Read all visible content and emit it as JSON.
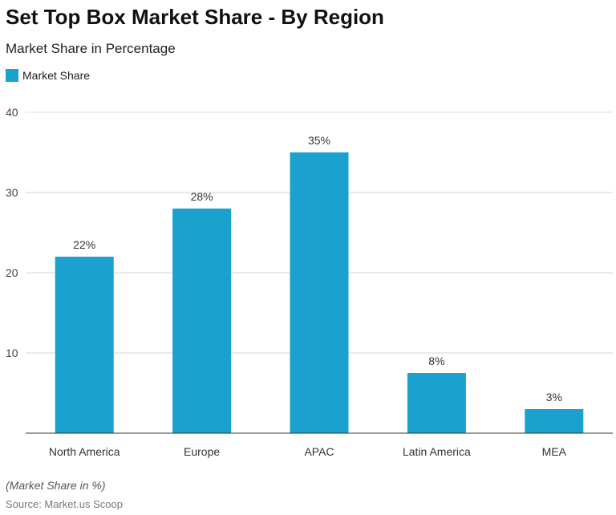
{
  "chart_data": {
    "type": "bar",
    "title": "Set Top Box Market Share - By Region",
    "subtitle": "Market Share in Percentage",
    "categories": [
      "North America",
      "Europe",
      "APAC",
      "Latin America",
      "MEA"
    ],
    "series": [
      {
        "name": "Market Share",
        "values": [
          22,
          28,
          35,
          7.5,
          3
        ],
        "labels": [
          "22%",
          "28%",
          "35%",
          "8%",
          "3%"
        ],
        "color": "#1aa1ce"
      }
    ],
    "ylim": [
      0,
      40
    ],
    "yticks": [
      10,
      20,
      30,
      40
    ],
    "grid": true,
    "legend": "top-left",
    "note": "(Market Share in %)",
    "source": "Source: Market.us Scoop"
  }
}
